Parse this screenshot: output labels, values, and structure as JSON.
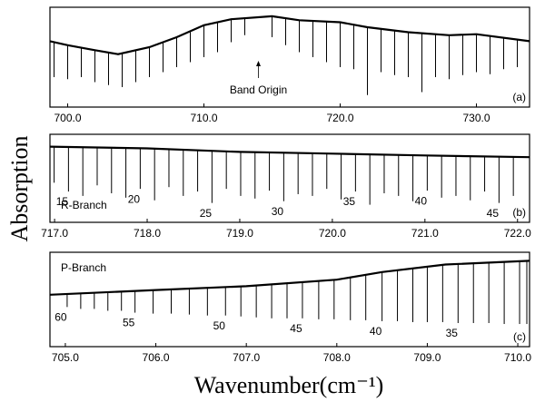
{
  "figure": {
    "ylabel": "Absorption",
    "xlabel": "Wavenumber(cm⁻¹)"
  },
  "chart_data": [
    {
      "type": "line",
      "panel_label": "(a)",
      "xlim": [
        698.7,
        733.9
      ],
      "ylim": [
        0,
        1
      ],
      "xticks": [
        {
          "value": 700,
          "label": "700.0"
        },
        {
          "value": 710,
          "label": "710.0"
        },
        {
          "value": 720,
          "label": "720.0"
        },
        {
          "value": 730,
          "label": "730.0"
        }
      ],
      "x": [
        698.7,
        700,
        702,
        703.7,
        706,
        708,
        710,
        712,
        715,
        717,
        720,
        722,
        725,
        728,
        730,
        733.9
      ],
      "values": [
        0.66,
        0.62,
        0.57,
        0.53,
        0.6,
        0.7,
        0.82,
        0.88,
        0.91,
        0.87,
        0.85,
        0.8,
        0.75,
        0.72,
        0.73,
        0.66
      ],
      "absorption_lines": {
        "x": [
          699,
          700,
          701,
          702,
          703,
          704,
          705,
          706,
          707,
          708,
          709,
          710,
          711,
          712,
          713,
          715,
          716,
          717,
          718,
          719,
          720,
          721,
          722,
          723,
          724,
          725,
          726,
          727,
          728,
          729,
          730,
          731,
          732,
          733
        ],
        "values": [
          0.3,
          0.28,
          0.3,
          0.25,
          0.22,
          0.2,
          0.25,
          0.3,
          0.35,
          0.4,
          0.45,
          0.5,
          0.55,
          0.65,
          0.72,
          0.7,
          0.62,
          0.55,
          0.5,
          0.45,
          0.4,
          0.38,
          0.12,
          0.35,
          0.32,
          0.3,
          0.15,
          0.3,
          0.28,
          0.32,
          0.35,
          0.33,
          0.38,
          0.4
        ]
      },
      "annotations": [
        {
          "text": "Band Origin",
          "x": 714.0
        }
      ]
    },
    {
      "type": "line",
      "panel_label": "(b)",
      "branch_label": "R-Branch",
      "xlim": [
        716.95,
        722.13
      ],
      "ylim": [
        0,
        1
      ],
      "xticks": [
        {
          "value": 717,
          "label": "717.0"
        },
        {
          "value": 718,
          "label": "718.0"
        },
        {
          "value": 719,
          "label": "719.0"
        },
        {
          "value": 720,
          "label": "720.0"
        },
        {
          "value": 721,
          "label": "721.0"
        },
        {
          "value": 722,
          "label": "722.0"
        }
      ],
      "x": [
        716.95,
        718,
        719,
        720,
        721,
        722.13
      ],
      "values": [
        0.86,
        0.84,
        0.8,
        0.78,
        0.76,
        0.74
      ],
      "absorption_lines": {
        "x": [
          716.995,
          717.15,
          717.305,
          717.46,
          717.615,
          717.77,
          717.925,
          718.08,
          718.235,
          718.39,
          718.545,
          718.7,
          718.855,
          719.01,
          719.165,
          719.32,
          719.475,
          719.63,
          719.785,
          719.94,
          720.095,
          720.25,
          720.405,
          720.56,
          720.715,
          720.87,
          721.025,
          721.18,
          721.335,
          721.49,
          721.645,
          721.8,
          721.955
        ],
        "values": [
          0.45,
          0.35,
          0.3,
          0.42,
          0.33,
          0.28,
          0.38,
          0.25,
          0.4,
          0.3,
          0.35,
          0.22,
          0.38,
          0.3,
          0.27,
          0.36,
          0.24,
          0.32,
          0.3,
          0.38,
          0.26,
          0.35,
          0.2,
          0.33,
          0.3,
          0.24,
          0.36,
          0.28,
          0.3,
          0.25,
          0.35,
          0.22,
          0.3
        ]
      },
      "annotations": [
        {
          "text": "15",
          "x": 717.15
        },
        {
          "text": "20",
          "x": 717.925
        },
        {
          "text": "25",
          "x": 718.7
        },
        {
          "text": "30",
          "x": 719.475
        },
        {
          "text": "35",
          "x": 720.25
        },
        {
          "text": "40",
          "x": 721.025
        },
        {
          "text": "45",
          "x": 721.8
        }
      ]
    },
    {
      "type": "line",
      "panel_label": "(c)",
      "branch_label": "P-Branch",
      "xlim": [
        704.83,
        710.13
      ],
      "ylim": [
        0,
        1
      ],
      "xticks": [
        {
          "value": 705,
          "label": "705.0"
        },
        {
          "value": 706,
          "label": "706.0"
        },
        {
          "value": 707,
          "label": "707.0"
        },
        {
          "value": 708,
          "label": "708.0"
        },
        {
          "value": 709,
          "label": "709.0"
        },
        {
          "value": 710,
          "label": "710.0"
        }
      ],
      "x": [
        704.83,
        706,
        707,
        708,
        708.5,
        709.2,
        710.13
      ],
      "values": [
        0.55,
        0.6,
        0.64,
        0.71,
        0.79,
        0.87,
        0.91
      ],
      "absorption_lines": {
        "x": [
          705.02,
          705.17,
          705.32,
          705.47,
          705.62,
          705.77,
          705.97,
          706.17,
          706.37,
          706.57,
          706.77,
          706.94,
          707.11,
          707.28,
          707.45,
          707.62,
          707.8,
          707.97,
          708.15,
          708.32,
          708.5,
          708.67,
          708.84,
          709.0,
          709.17,
          709.34,
          709.51,
          709.68,
          709.85,
          710.02,
          710.1
        ],
        "values": [
          0.42,
          0.4,
          0.4,
          0.38,
          0.38,
          0.36,
          0.35,
          0.35,
          0.34,
          0.33,
          0.33,
          0.32,
          0.31,
          0.3,
          0.3,
          0.3,
          0.29,
          0.29,
          0.28,
          0.28,
          0.27,
          0.27,
          0.26,
          0.26,
          0.26,
          0.25,
          0.25,
          0.25,
          0.24,
          0.24,
          0.24
        ]
      },
      "annotations": [
        {
          "text": "60",
          "x": 705.02
        },
        {
          "text": "55",
          "x": 705.77
        },
        {
          "text": "50",
          "x": 706.77
        },
        {
          "text": "45",
          "x": 707.62
        },
        {
          "text": "40",
          "x": 708.5
        },
        {
          "text": "35",
          "x": 709.34
        }
      ]
    }
  ]
}
